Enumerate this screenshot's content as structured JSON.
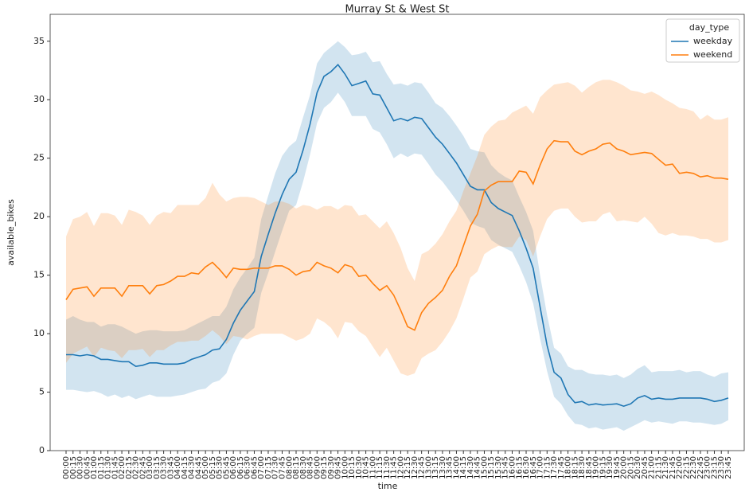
{
  "chart_data": {
    "type": "line",
    "title": "Murray St & West St",
    "x_label": "time",
    "y_label": "available_bikes",
    "legend_title": "day_type",
    "legend_position": "upper right",
    "band_opacity": 0.2,
    "categories": [
      "00:00",
      "00:15",
      "00:30",
      "00:45",
      "01:00",
      "01:15",
      "01:30",
      "01:45",
      "02:00",
      "02:15",
      "02:30",
      "02:45",
      "03:00",
      "03:15",
      "03:30",
      "03:45",
      "04:00",
      "04:15",
      "04:30",
      "04:45",
      "05:00",
      "05:15",
      "05:30",
      "05:45",
      "06:00",
      "06:15",
      "06:30",
      "06:45",
      "07:00",
      "07:15",
      "07:30",
      "07:45",
      "08:00",
      "08:15",
      "08:30",
      "08:45",
      "09:00",
      "09:15",
      "09:30",
      "09:45",
      "10:00",
      "10:15",
      "10:30",
      "10:45",
      "11:00",
      "11:15",
      "11:30",
      "11:45",
      "12:00",
      "12:15",
      "12:30",
      "12:45",
      "13:00",
      "13:15",
      "13:30",
      "13:45",
      "14:00",
      "14:15",
      "14:30",
      "14:45",
      "15:00",
      "15:15",
      "15:30",
      "15:45",
      "16:00",
      "16:15",
      "16:30",
      "16:45",
      "17:00",
      "17:15",
      "17:30",
      "17:45",
      "18:00",
      "18:15",
      "18:30",
      "18:45",
      "19:00",
      "19:15",
      "19:30",
      "19:45",
      "20:00",
      "20:15",
      "20:30",
      "20:45",
      "21:00",
      "21:15",
      "21:30",
      "21:45",
      "22:00",
      "22:15",
      "22:30",
      "22:45",
      "23:00",
      "23:15",
      "23:30",
      "23:45"
    ],
    "series": [
      {
        "name": "weekday",
        "color": "#1f77b4",
        "values": [
          8.2,
          8.2,
          8.1,
          8.2,
          8.1,
          7.8,
          7.8,
          7.7,
          7.6,
          7.6,
          7.2,
          7.3,
          7.5,
          7.5,
          7.4,
          7.4,
          7.4,
          7.5,
          7.8,
          8.0,
          8.2,
          8.6,
          8.7,
          9.5,
          10.9,
          12.0,
          12.8,
          13.6,
          16.6,
          18.5,
          20.3,
          21.9,
          23.2,
          23.8,
          25.7,
          27.9,
          30.6,
          32.0,
          32.4,
          33.0,
          32.2,
          31.2,
          31.4,
          31.6,
          30.5,
          30.4,
          29.3,
          28.2,
          28.4,
          28.2,
          28.5,
          28.4,
          27.6,
          26.8,
          26.2,
          25.4,
          24.6,
          23.6,
          22.6,
          22.3,
          22.3,
          21.2,
          20.7,
          20.4,
          20.1,
          18.8,
          17.3,
          15.6,
          12.3,
          9.0,
          6.7,
          6.2,
          4.8,
          4.1,
          4.2,
          3.9,
          4.0,
          3.9,
          3.95,
          4.0,
          3.8,
          4.0,
          4.5,
          4.7,
          4.4,
          4.5,
          4.4,
          4.4,
          4.5,
          4.5,
          4.5,
          4.5,
          4.4,
          4.2,
          4.3,
          4.5
        ],
        "lower": [
          5.2,
          5.2,
          5.1,
          5.0,
          5.1,
          4.9,
          4.6,
          4.8,
          4.5,
          4.7,
          4.4,
          4.6,
          4.8,
          4.6,
          4.6,
          4.6,
          4.7,
          4.8,
          5.0,
          5.2,
          5.3,
          5.8,
          6.0,
          6.6,
          8.2,
          9.4,
          10.0,
          10.5,
          13.5,
          15.2,
          17.0,
          18.8,
          20.5,
          21.0,
          23.0,
          25.3,
          28.0,
          29.3,
          29.8,
          30.6,
          29.8,
          28.6,
          28.6,
          28.6,
          27.5,
          27.2,
          26.2,
          25.0,
          25.4,
          25.1,
          25.4,
          25.3,
          24.5,
          23.6,
          23.0,
          22.2,
          21.4,
          20.5,
          19.5,
          19.2,
          19.0,
          18.0,
          17.6,
          17.3,
          17.0,
          15.8,
          14.4,
          12.6,
          9.6,
          6.8,
          4.6,
          4.0,
          3.0,
          2.3,
          2.2,
          1.9,
          2.0,
          1.8,
          1.9,
          2.0,
          1.7,
          2.0,
          2.3,
          2.6,
          2.4,
          2.5,
          2.4,
          2.3,
          2.5,
          2.5,
          2.4,
          2.4,
          2.3,
          2.2,
          2.3,
          2.6
        ],
        "upper": [
          11.2,
          11.5,
          11.2,
          11.0,
          11.0,
          10.6,
          10.8,
          10.8,
          10.6,
          10.3,
          10.0,
          10.2,
          10.3,
          10.3,
          10.2,
          10.2,
          10.2,
          10.3,
          10.6,
          10.9,
          11.2,
          11.5,
          11.5,
          12.3,
          13.8,
          14.8,
          15.6,
          16.5,
          19.8,
          21.8,
          23.7,
          25.2,
          26.0,
          26.5,
          28.5,
          30.4,
          33.1,
          34.0,
          34.5,
          35.0,
          34.5,
          33.8,
          33.9,
          34.1,
          33.2,
          33.3,
          32.2,
          31.3,
          31.4,
          31.2,
          31.5,
          31.4,
          30.6,
          29.7,
          29.3,
          28.6,
          27.8,
          26.9,
          25.8,
          25.6,
          25.5,
          24.4,
          23.8,
          23.4,
          23.1,
          21.7,
          20.4,
          18.8,
          15.0,
          11.6,
          8.8,
          8.3,
          7.2,
          6.9,
          6.9,
          6.6,
          6.5,
          6.5,
          6.4,
          6.5,
          6.2,
          6.5,
          7.0,
          7.3,
          6.7,
          6.8,
          6.8,
          6.8,
          6.9,
          6.7,
          6.8,
          6.8,
          6.5,
          6.3,
          6.6,
          6.7
        ]
      },
      {
        "name": "weekend",
        "color": "#ff7f0e",
        "values": [
          12.9,
          13.8,
          13.9,
          14.0,
          13.2,
          13.9,
          13.9,
          13.9,
          13.2,
          14.1,
          14.1,
          14.1,
          13.4,
          14.1,
          14.2,
          14.5,
          14.9,
          14.9,
          15.2,
          15.1,
          15.7,
          16.1,
          15.5,
          14.8,
          15.6,
          15.5,
          15.5,
          15.6,
          15.6,
          15.6,
          15.8,
          15.8,
          15.5,
          15.0,
          15.3,
          15.4,
          16.1,
          15.8,
          15.6,
          15.2,
          15.9,
          15.7,
          14.9,
          15.0,
          14.3,
          13.7,
          14.1,
          13.3,
          12.0,
          10.6,
          10.3,
          11.8,
          12.6,
          13.1,
          13.7,
          14.9,
          15.8,
          17.5,
          19.2,
          20.2,
          22.2,
          22.7,
          23.0,
          23.0,
          23.0,
          23.9,
          23.8,
          22.8,
          24.4,
          25.8,
          26.5,
          26.4,
          26.4,
          25.6,
          25.3,
          25.6,
          25.8,
          26.2,
          26.3,
          25.8,
          25.6,
          25.3,
          25.4,
          25.5,
          25.4,
          24.9,
          24.4,
          24.5,
          23.7,
          23.8,
          23.7,
          23.4,
          23.5,
          23.3,
          23.3,
          23.2
        ],
        "lower": [
          7.5,
          8.3,
          8.6,
          8.9,
          8.0,
          8.8,
          8.6,
          8.5,
          7.9,
          8.6,
          8.6,
          8.7,
          8.0,
          8.6,
          8.6,
          9.0,
          9.3,
          9.3,
          9.4,
          9.4,
          9.8,
          10.3,
          9.8,
          9.1,
          9.8,
          9.7,
          9.5,
          9.8,
          10.0,
          10.0,
          10.0,
          10.0,
          9.7,
          9.4,
          9.6,
          10.0,
          11.3,
          11.0,
          10.5,
          9.6,
          11.0,
          10.9,
          10.2,
          9.8,
          8.9,
          8.0,
          8.8,
          7.7,
          6.6,
          6.4,
          6.6,
          7.9,
          8.3,
          8.6,
          9.3,
          10.2,
          11.3,
          13.0,
          14.8,
          15.3,
          16.8,
          17.2,
          17.5,
          17.4,
          17.4,
          18.3,
          18.0,
          16.6,
          18.3,
          19.8,
          20.5,
          20.7,
          20.7,
          20.0,
          19.5,
          19.6,
          19.6,
          20.2,
          20.4,
          19.6,
          19.7,
          19.6,
          19.5,
          20.0,
          19.4,
          18.6,
          18.4,
          18.6,
          18.4,
          18.4,
          18.3,
          18.1,
          18.1,
          17.8,
          17.8,
          18.0
        ],
        "upper": [
          18.3,
          19.8,
          20.0,
          20.4,
          19.2,
          20.3,
          20.3,
          20.1,
          19.3,
          20.6,
          20.4,
          20.1,
          19.3,
          20.1,
          20.4,
          20.3,
          21.0,
          21.0,
          21.0,
          21.0,
          21.6,
          22.9,
          21.9,
          21.3,
          21.6,
          21.7,
          21.7,
          21.6,
          21.3,
          21.0,
          21.3,
          21.3,
          21.1,
          20.7,
          21.0,
          20.9,
          20.6,
          20.9,
          20.9,
          20.6,
          21.0,
          20.9,
          20.1,
          20.2,
          19.6,
          19.0,
          19.6,
          18.6,
          17.3,
          15.6,
          14.5,
          16.8,
          17.1,
          17.7,
          18.5,
          19.6,
          20.5,
          22.2,
          23.7,
          25.2,
          27.0,
          27.7,
          28.2,
          28.3,
          28.9,
          29.2,
          29.5,
          28.8,
          30.2,
          30.8,
          31.3,
          31.4,
          31.5,
          31.2,
          30.6,
          31.1,
          31.5,
          31.7,
          31.7,
          31.5,
          31.2,
          30.8,
          30.7,
          30.5,
          30.7,
          30.4,
          30.0,
          29.7,
          29.3,
          29.2,
          29.0,
          28.3,
          28.7,
          28.3,
          28.3,
          28.5
        ]
      }
    ],
    "ylim": [
      0,
      37.3
    ],
    "yticks": [
      0,
      5,
      10,
      15,
      20,
      25,
      30,
      35
    ]
  }
}
